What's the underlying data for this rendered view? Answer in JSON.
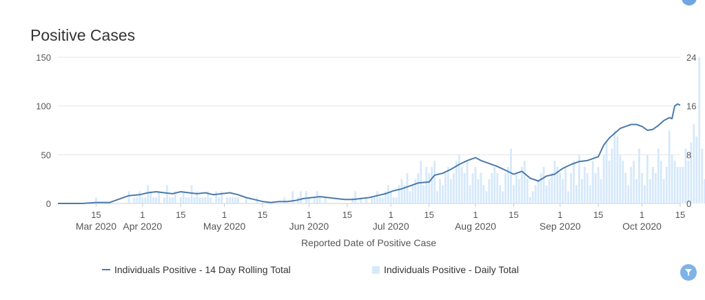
{
  "chart_data": {
    "type": "bar+line",
    "title": "Positive Cases",
    "xlabel": "Reported Date of Positive Case",
    "y_left": {
      "ticks": [
        0,
        50,
        100,
        150
      ],
      "ylim": [
        0,
        150
      ]
    },
    "y_right": {
      "ticks": [
        0,
        8,
        16,
        24
      ],
      "ylim": [
        0,
        24
      ]
    },
    "x_range": [
      "2020-03-01",
      "2020-10-15"
    ],
    "x_ticks": [
      {
        "date": "2020-03-15",
        "day": "15",
        "month": "Mar 2020"
      },
      {
        "date": "2020-04-01",
        "day": "1",
        "month": "Apr 2020"
      },
      {
        "date": "2020-04-15",
        "day": "15",
        "month": ""
      },
      {
        "date": "2020-05-01",
        "day": "1",
        "month": "May 2020"
      },
      {
        "date": "2020-05-15",
        "day": "15",
        "month": ""
      },
      {
        "date": "2020-06-01",
        "day": "1",
        "month": "Jun 2020"
      },
      {
        "date": "2020-06-15",
        "day": "15",
        "month": ""
      },
      {
        "date": "2020-07-01",
        "day": "1",
        "month": "Jul 2020"
      },
      {
        "date": "2020-07-15",
        "day": "15",
        "month": ""
      },
      {
        "date": "2020-08-01",
        "day": "1",
        "month": "Aug 2020"
      },
      {
        "date": "2020-08-15",
        "day": "15",
        "month": ""
      },
      {
        "date": "2020-09-01",
        "day": "1",
        "month": "Sep 2020"
      },
      {
        "date": "2020-09-15",
        "day": "15",
        "month": ""
      },
      {
        "date": "2020-10-01",
        "day": "1",
        "month": "Oct 2020"
      },
      {
        "date": "2020-10-15",
        "day": "15",
        "month": ""
      }
    ],
    "grid": true,
    "legend_position": "bottom",
    "series": [
      {
        "name": "Individuals Positive - 14 Day Rolling Total",
        "type": "line",
        "axis": "left",
        "color": "#4a7aab",
        "points": [
          [
            "2020-03-01",
            0
          ],
          [
            "2020-03-05",
            0
          ],
          [
            "2020-03-10",
            0
          ],
          [
            "2020-03-15",
            1
          ],
          [
            "2020-03-20",
            1
          ],
          [
            "2020-03-23",
            4
          ],
          [
            "2020-03-27",
            8
          ],
          [
            "2020-03-31",
            9
          ],
          [
            "2020-04-03",
            11
          ],
          [
            "2020-04-06",
            12
          ],
          [
            "2020-04-09",
            11
          ],
          [
            "2020-04-12",
            10
          ],
          [
            "2020-04-15",
            12
          ],
          [
            "2020-04-18",
            11
          ],
          [
            "2020-04-21",
            10
          ],
          [
            "2020-04-24",
            11
          ],
          [
            "2020-04-27",
            9
          ],
          [
            "2020-04-30",
            10
          ],
          [
            "2020-05-03",
            11
          ],
          [
            "2020-05-06",
            9
          ],
          [
            "2020-05-09",
            6
          ],
          [
            "2020-05-12",
            4
          ],
          [
            "2020-05-15",
            2
          ],
          [
            "2020-05-18",
            1
          ],
          [
            "2020-05-21",
            2
          ],
          [
            "2020-05-24",
            2
          ],
          [
            "2020-05-27",
            3
          ],
          [
            "2020-05-30",
            5
          ],
          [
            "2020-06-02",
            6
          ],
          [
            "2020-06-05",
            7
          ],
          [
            "2020-06-08",
            6
          ],
          [
            "2020-06-11",
            5
          ],
          [
            "2020-06-14",
            4
          ],
          [
            "2020-06-17",
            4
          ],
          [
            "2020-06-20",
            5
          ],
          [
            "2020-06-23",
            6
          ],
          [
            "2020-06-26",
            8
          ],
          [
            "2020-06-29",
            10
          ],
          [
            "2020-07-02",
            13
          ],
          [
            "2020-07-05",
            15
          ],
          [
            "2020-07-08",
            18
          ],
          [
            "2020-07-11",
            21
          ],
          [
            "2020-07-15",
            22
          ],
          [
            "2020-07-17",
            29
          ],
          [
            "2020-07-20",
            31
          ],
          [
            "2020-07-23",
            35
          ],
          [
            "2020-07-26",
            40
          ],
          [
            "2020-07-29",
            44
          ],
          [
            "2020-08-01",
            47
          ],
          [
            "2020-08-03",
            44
          ],
          [
            "2020-08-06",
            41
          ],
          [
            "2020-08-09",
            38
          ],
          [
            "2020-08-12",
            34
          ],
          [
            "2020-08-15",
            30
          ],
          [
            "2020-08-18",
            33
          ],
          [
            "2020-08-21",
            26
          ],
          [
            "2020-08-24",
            23
          ],
          [
            "2020-08-27",
            28
          ],
          [
            "2020-08-30",
            30
          ],
          [
            "2020-09-02",
            36
          ],
          [
            "2020-09-05",
            40
          ],
          [
            "2020-09-08",
            43
          ],
          [
            "2020-09-11",
            44
          ],
          [
            "2020-09-15",
            48
          ],
          [
            "2020-09-17",
            60
          ],
          [
            "2020-09-19",
            67
          ],
          [
            "2020-09-21",
            72
          ],
          [
            "2020-09-23",
            77
          ],
          [
            "2020-09-25",
            79
          ],
          [
            "2020-09-27",
            81
          ],
          [
            "2020-09-29",
            81
          ],
          [
            "2020-10-01",
            79
          ],
          [
            "2020-10-03",
            75
          ],
          [
            "2020-10-05",
            76
          ],
          [
            "2020-10-07",
            80
          ],
          [
            "2020-10-09",
            85
          ],
          [
            "2020-10-11",
            88
          ],
          [
            "2020-10-12",
            87
          ],
          [
            "2020-10-13",
            100
          ],
          [
            "2020-10-14",
            102
          ],
          [
            "2020-10-15",
            101
          ]
        ]
      },
      {
        "name": "Individuals Positive - Daily Total",
        "type": "bar",
        "axis": "right",
        "color": "#d6e9fb",
        "start_date": "2020-03-01",
        "values": [
          0,
          0,
          0,
          0,
          0,
          0,
          0,
          0,
          0,
          0,
          0,
          0,
          0,
          0,
          1,
          0,
          0,
          0,
          0,
          0,
          0,
          0,
          0,
          0,
          0,
          0,
          2,
          0,
          1,
          1,
          2,
          1,
          1,
          3,
          2,
          1,
          1,
          2,
          0,
          1,
          3,
          1,
          1,
          2,
          0,
          1,
          2,
          1,
          1,
          3,
          1,
          2,
          1,
          1,
          1,
          2,
          1,
          0,
          2,
          1,
          2,
          0,
          1,
          1,
          1,
          1,
          1,
          0,
          0,
          1,
          0,
          0,
          0,
          1,
          0,
          0,
          0,
          0,
          0,
          0,
          0,
          0,
          0,
          1,
          0,
          0,
          2,
          0,
          1,
          2,
          0,
          2,
          1,
          0,
          1,
          2,
          1,
          0,
          1,
          0,
          0,
          0,
          0,
          0,
          0,
          0,
          0,
          0,
          1,
          2,
          0,
          1,
          0,
          1,
          0,
          1,
          1,
          2,
          1,
          1,
          2,
          3,
          2,
          1,
          1,
          3,
          4,
          3,
          5,
          2,
          3,
          4,
          5,
          7,
          3,
          6,
          5,
          6,
          7,
          2,
          4,
          3,
          5,
          6,
          4,
          5,
          7,
          8,
          6,
          5,
          7,
          3,
          5,
          6,
          4,
          5,
          3,
          2,
          4,
          5,
          6,
          5,
          3,
          2,
          5,
          6,
          9,
          3,
          5,
          4,
          6,
          7,
          4,
          1,
          2,
          3,
          4,
          5,
          6,
          3,
          4,
          5,
          7,
          6,
          5,
          4,
          6,
          2,
          5,
          7,
          3,
          8,
          4,
          6,
          5,
          3,
          7,
          5,
          6,
          4,
          8,
          10,
          7,
          9,
          12,
          11,
          8,
          7,
          5,
          3,
          6,
          7,
          4,
          9,
          5,
          3,
          8,
          4,
          6,
          5,
          9,
          7,
          4,
          6,
          12,
          8,
          7,
          6,
          6,
          6,
          9,
          7,
          10,
          13,
          11,
          24,
          9,
          4,
          4
        ]
      }
    ]
  },
  "ui": {
    "filter_icon": "filter-icon"
  }
}
